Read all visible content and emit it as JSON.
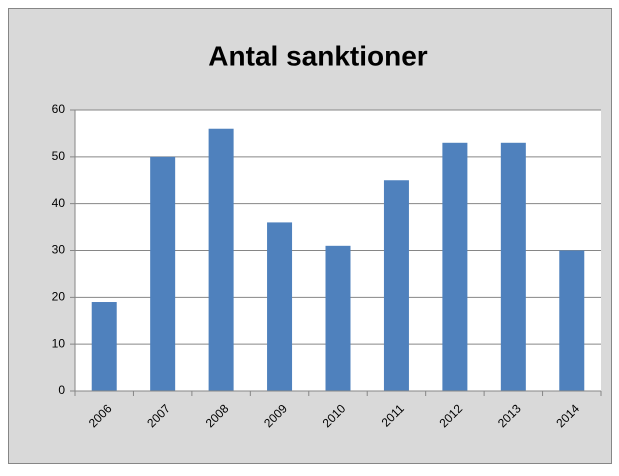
{
  "chart_data": {
    "type": "bar",
    "title": "Antal sanktioner",
    "categories": [
      "2006",
      "2007",
      "2008",
      "2009",
      "2010",
      "2011",
      "2012",
      "2013",
      "2014"
    ],
    "values": [
      19,
      50,
      56,
      36,
      31,
      45,
      53,
      53,
      30
    ],
    "color": "#4f81bd",
    "ylim": [
      0,
      60
    ],
    "yticks": [
      0,
      10,
      20,
      30,
      40,
      50,
      60
    ],
    "grid": true
  }
}
